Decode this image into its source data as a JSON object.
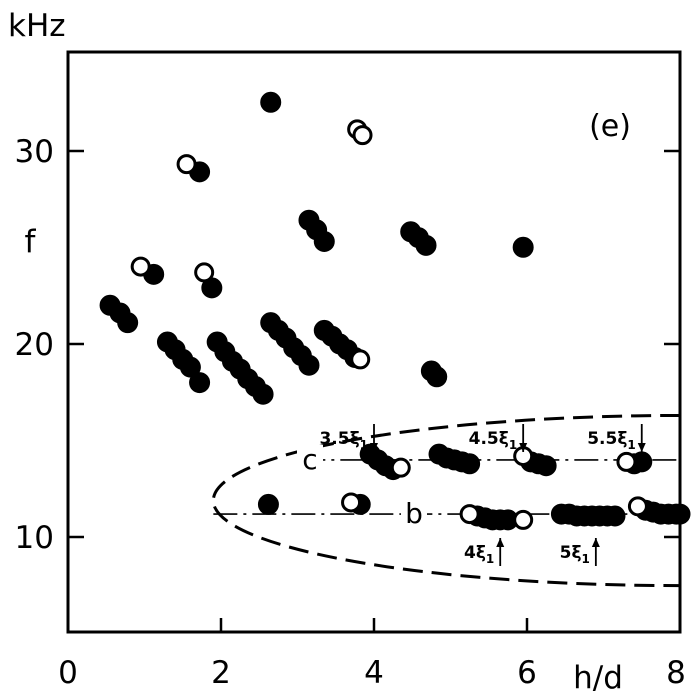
{
  "chart_data": {
    "type": "scatter",
    "panel_label": "(e)",
    "ylabel_unit": "kHz",
    "ylabel": "f",
    "xlabel": "h/d",
    "xlim": [
      0,
      8
    ],
    "ylim": [
      5,
      35
    ],
    "x_ticks": [
      0,
      2,
      4,
      6,
      8
    ],
    "y_ticks": [
      10,
      20,
      30
    ],
    "series": [
      {
        "marker": "filled-circle",
        "points": [
          [
            0.55,
            21.9
          ],
          [
            0.68,
            21.5
          ],
          [
            0.78,
            21.0
          ],
          [
            1.12,
            23.5
          ],
          [
            1.3,
            20.0
          ],
          [
            1.4,
            19.6
          ],
          [
            1.5,
            19.1
          ],
          [
            1.6,
            18.7
          ],
          [
            1.72,
            17.9
          ],
          [
            1.72,
            28.8
          ],
          [
            1.88,
            22.8
          ],
          [
            1.95,
            20.0
          ],
          [
            2.05,
            19.5
          ],
          [
            2.15,
            19.0
          ],
          [
            2.25,
            18.6
          ],
          [
            2.35,
            18.1
          ],
          [
            2.45,
            17.7
          ],
          [
            2.55,
            17.3
          ],
          [
            2.62,
            11.6
          ],
          [
            2.65,
            32.4
          ],
          [
            2.65,
            21.0
          ],
          [
            2.75,
            20.6
          ],
          [
            2.85,
            20.2
          ],
          [
            2.95,
            19.7
          ],
          [
            3.05,
            19.3
          ],
          [
            3.15,
            18.8
          ],
          [
            3.15,
            26.3
          ],
          [
            3.25,
            25.8
          ],
          [
            3.35,
            25.2
          ],
          [
            3.35,
            20.6
          ],
          [
            3.45,
            20.3
          ],
          [
            3.55,
            19.9
          ],
          [
            3.65,
            19.6
          ],
          [
            3.75,
            19.2
          ],
          [
            3.82,
            11.6
          ],
          [
            3.95,
            14.2
          ],
          [
            4.05,
            13.9
          ],
          [
            4.15,
            13.6
          ],
          [
            4.25,
            13.4
          ],
          [
            4.48,
            25.7
          ],
          [
            4.58,
            25.4
          ],
          [
            4.68,
            25.0
          ],
          [
            4.75,
            18.5
          ],
          [
            4.82,
            18.2
          ],
          [
            4.85,
            14.2
          ],
          [
            4.95,
            14.0
          ],
          [
            5.05,
            13.9
          ],
          [
            5.15,
            13.8
          ],
          [
            5.25,
            13.7
          ],
          [
            5.35,
            11.0
          ],
          [
            5.45,
            10.9
          ],
          [
            5.55,
            10.8
          ],
          [
            5.65,
            10.8
          ],
          [
            5.75,
            10.8
          ],
          [
            5.95,
            24.9
          ],
          [
            6.05,
            13.8
          ],
          [
            6.15,
            13.7
          ],
          [
            6.25,
            13.6
          ],
          [
            6.45,
            11.1
          ],
          [
            6.55,
            11.1
          ],
          [
            6.65,
            11.0
          ],
          [
            6.75,
            11.0
          ],
          [
            6.85,
            11.0
          ],
          [
            6.95,
            11.0
          ],
          [
            7.05,
            11.0
          ],
          [
            7.15,
            11.0
          ],
          [
            7.4,
            13.7
          ],
          [
            7.5,
            13.8
          ],
          [
            7.55,
            11.3
          ],
          [
            7.65,
            11.2
          ],
          [
            7.75,
            11.1
          ],
          [
            7.85,
            11.1
          ],
          [
            7.95,
            11.1
          ],
          [
            8.0,
            11.1
          ]
        ]
      },
      {
        "marker": "open-circle",
        "points": [
          [
            0.95,
            23.9
          ],
          [
            1.55,
            29.2
          ],
          [
            1.78,
            23.6
          ],
          [
            3.7,
            11.7
          ],
          [
            3.78,
            31.0
          ],
          [
            3.85,
            30.7
          ],
          [
            3.82,
            19.1
          ],
          [
            4.35,
            13.5
          ],
          [
            5.25,
            11.1
          ],
          [
            5.95,
            10.8
          ],
          [
            5.95,
            14.1
          ],
          [
            7.3,
            13.8
          ],
          [
            7.45,
            11.5
          ]
        ]
      }
    ],
    "lines": [
      {
        "label": "c",
        "y": 13.9,
        "x_start": 3.05,
        "x_end": 8.0
      },
      {
        "label": "b",
        "y": 11.1,
        "x_start": 1.9,
        "x_end": 8.0
      }
    ],
    "annotations": [
      {
        "text": "3.5ξ",
        "sub": "1",
        "arrow": "down",
        "x": 4.0
      },
      {
        "text": "4.5ξ",
        "sub": "1",
        "arrow": "down",
        "x": 5.95
      },
      {
        "text": "5.5ξ",
        "sub": "1",
        "arrow": "down",
        "x": 7.5
      },
      {
        "text": "4ξ",
        "sub": "1",
        "arrow": "up",
        "x": 5.65
      },
      {
        "text": "5ξ",
        "sub": "1",
        "arrow": "up",
        "x": 6.9
      }
    ],
    "region": {
      "shape": "dashed-ellipse",
      "x_left": 1.9,
      "y_top": 16.2,
      "y_bottom": 7.4
    }
  }
}
